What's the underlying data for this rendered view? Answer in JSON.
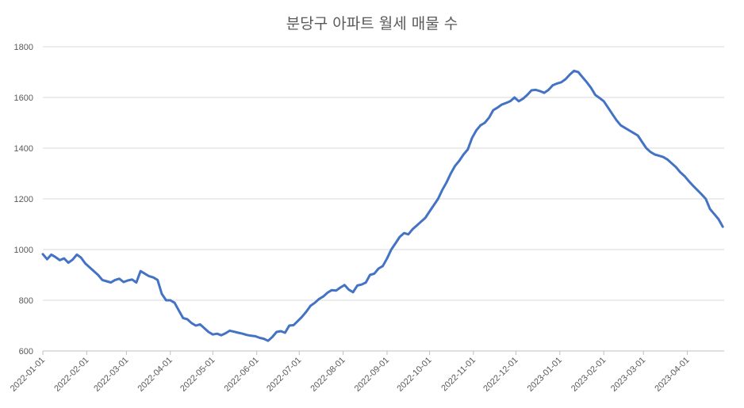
{
  "chart_data": {
    "type": "line",
    "title": "분당구 아파트 월세 매물 수",
    "xlabel": "",
    "ylabel": "",
    "ylim": [
      600,
      1800
    ],
    "y_ticks": [
      600,
      800,
      1000,
      1200,
      1400,
      1600,
      1800
    ],
    "x_range": [
      "2022-01-01",
      "2023-04-27"
    ],
    "x_ticks": [
      "2022-01-01",
      "2022-02-01",
      "2022-03-01",
      "2022-04-01",
      "2022-05-01",
      "2022-06-01",
      "2022-07-01",
      "2022-08-01",
      "2022-09-01",
      "2022-10-01",
      "2022-11-01",
      "2022-12-01",
      "2023-01-01",
      "2023-02-01",
      "2023-03-01",
      "2023-04-01"
    ],
    "grid": "horizontal",
    "colors": {
      "line": "#4472C4",
      "grid": "#d9d9d9",
      "text": "#595959"
    },
    "series": [
      {
        "x": [
          "2022-01-01",
          "2022-01-04",
          "2022-01-07",
          "2022-01-10",
          "2022-01-13",
          "2022-01-16",
          "2022-01-19",
          "2022-01-22",
          "2022-01-25",
          "2022-01-28",
          "2022-01-31",
          "2022-02-03",
          "2022-02-06",
          "2022-02-09",
          "2022-02-12",
          "2022-02-15",
          "2022-02-18",
          "2022-02-21",
          "2022-02-24",
          "2022-02-27",
          "2022-03-02",
          "2022-03-05",
          "2022-03-08",
          "2022-03-11",
          "2022-03-14",
          "2022-03-17",
          "2022-03-20",
          "2022-03-23",
          "2022-03-26",
          "2022-03-29",
          "2022-04-01",
          "2022-04-04",
          "2022-04-07",
          "2022-04-10",
          "2022-04-13",
          "2022-04-16",
          "2022-04-19",
          "2022-04-22",
          "2022-04-25",
          "2022-04-28",
          "2022-05-01",
          "2022-05-04",
          "2022-05-07",
          "2022-05-10",
          "2022-05-13",
          "2022-05-16",
          "2022-05-19",
          "2022-05-22",
          "2022-05-25",
          "2022-05-28",
          "2022-05-31",
          "2022-06-03",
          "2022-06-06",
          "2022-06-09",
          "2022-06-12",
          "2022-06-15",
          "2022-06-18",
          "2022-06-21",
          "2022-06-24",
          "2022-06-27",
          "2022-06-30",
          "2022-07-03",
          "2022-07-06",
          "2022-07-09",
          "2022-07-12",
          "2022-07-15",
          "2022-07-18",
          "2022-07-21",
          "2022-07-24",
          "2022-07-27",
          "2022-07-30",
          "2022-08-02",
          "2022-08-05",
          "2022-08-08",
          "2022-08-11",
          "2022-08-14",
          "2022-08-17",
          "2022-08-20",
          "2022-08-23",
          "2022-08-26",
          "2022-08-29",
          "2022-09-01",
          "2022-09-04",
          "2022-09-07",
          "2022-09-10",
          "2022-09-13",
          "2022-09-16",
          "2022-09-19",
          "2022-09-22",
          "2022-09-25",
          "2022-09-28",
          "2022-10-01",
          "2022-10-04",
          "2022-10-07",
          "2022-10-10",
          "2022-10-13",
          "2022-10-16",
          "2022-10-19",
          "2022-10-22",
          "2022-10-25",
          "2022-10-28",
          "2022-10-31",
          "2022-11-03",
          "2022-11-06",
          "2022-11-09",
          "2022-11-12",
          "2022-11-15",
          "2022-11-18",
          "2022-11-21",
          "2022-11-24",
          "2022-11-27",
          "2022-11-30",
          "2022-12-03",
          "2022-12-06",
          "2022-12-09",
          "2022-12-12",
          "2022-12-15",
          "2022-12-18",
          "2022-12-21",
          "2022-12-24",
          "2022-12-27",
          "2022-12-30",
          "2023-01-02",
          "2023-01-05",
          "2023-01-08",
          "2023-01-11",
          "2023-01-14",
          "2023-01-17",
          "2023-01-20",
          "2023-01-23",
          "2023-01-26",
          "2023-01-29",
          "2023-02-01",
          "2023-02-04",
          "2023-02-07",
          "2023-02-10",
          "2023-02-13",
          "2023-02-16",
          "2023-02-19",
          "2023-02-22",
          "2023-02-25",
          "2023-02-28",
          "2023-03-03",
          "2023-03-06",
          "2023-03-09",
          "2023-03-12",
          "2023-03-15",
          "2023-03-18",
          "2023-03-21",
          "2023-03-24",
          "2023-03-27",
          "2023-03-30",
          "2023-04-02",
          "2023-04-05",
          "2023-04-08",
          "2023-04-11",
          "2023-04-14",
          "2023-04-17",
          "2023-04-20",
          "2023-04-23",
          "2023-04-26"
        ],
        "values": [
          982,
          962,
          980,
          970,
          958,
          965,
          948,
          960,
          980,
          968,
          945,
          930,
          915,
          900,
          880,
          875,
          870,
          880,
          885,
          872,
          878,
          882,
          870,
          915,
          905,
          895,
          890,
          880,
          825,
          800,
          800,
          790,
          760,
          730,
          725,
          710,
          700,
          705,
          690,
          675,
          665,
          668,
          662,
          670,
          680,
          676,
          672,
          668,
          663,
          660,
          658,
          652,
          648,
          640,
          655,
          675,
          678,
          672,
          700,
          702,
          718,
          735,
          755,
          778,
          790,
          805,
          815,
          830,
          840,
          838,
          850,
          860,
          842,
          832,
          858,
          862,
          870,
          900,
          905,
          925,
          935,
          965,
          1000,
          1025,
          1050,
          1065,
          1060,
          1080,
          1095,
          1110,
          1125,
          1150,
          1175,
          1200,
          1235,
          1265,
          1300,
          1330,
          1350,
          1375,
          1395,
          1440,
          1470,
          1490,
          1500,
          1520,
          1550,
          1560,
          1572,
          1578,
          1585,
          1600,
          1585,
          1595,
          1610,
          1628,
          1630,
          1625,
          1618,
          1630,
          1648,
          1655,
          1660,
          1672,
          1690,
          1705,
          1700,
          1680,
          1660,
          1638,
          1610,
          1598,
          1585,
          1560,
          1535,
          1510,
          1490,
          1480,
          1470,
          1460,
          1450,
          1425,
          1400,
          1385,
          1375,
          1370,
          1365,
          1355,
          1340,
          1325,
          1305,
          1290,
          1270,
          1252,
          1235,
          1218,
          1200,
          1160,
          1140,
          1120,
          1090
        ]
      }
    ]
  }
}
